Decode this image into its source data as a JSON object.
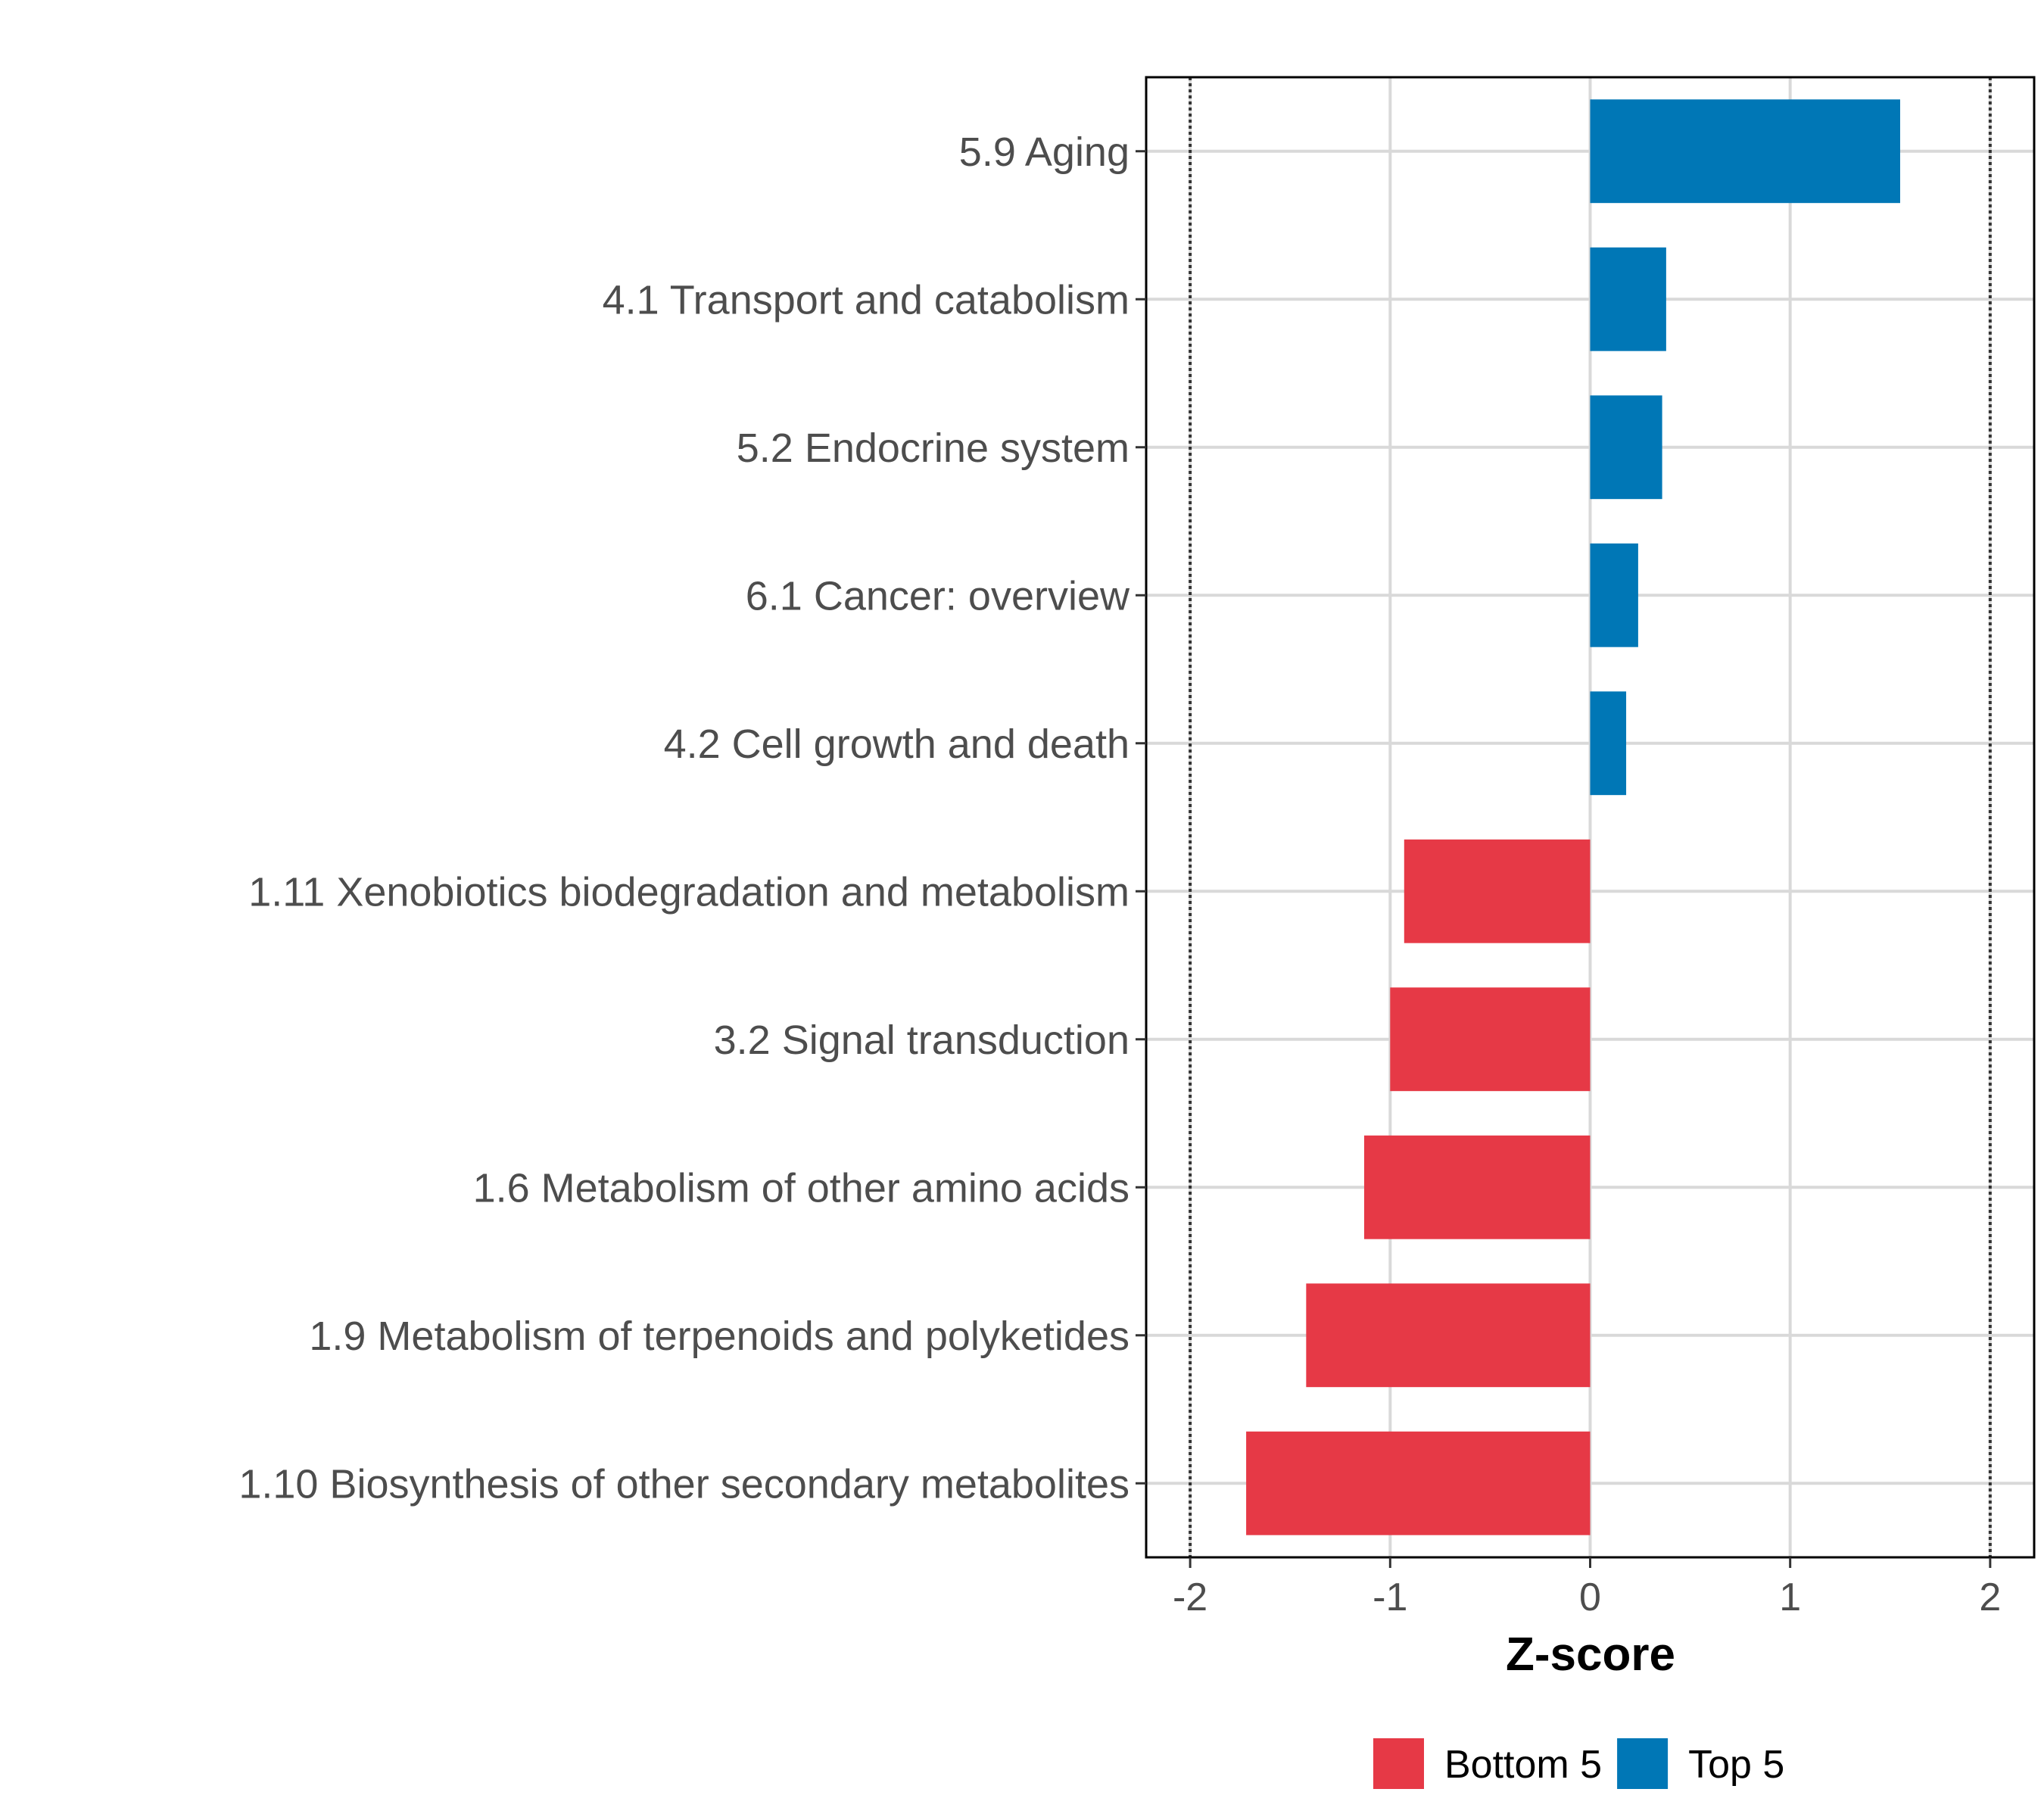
{
  "chart_data": {
    "type": "bar",
    "orientation": "horizontal",
    "categories": [
      "5.9 Aging",
      "4.1 Transport and catabolism",
      "5.2 Endocrine system",
      "6.1 Cancer: overview",
      "4.2 Cell growth and death",
      "1.11 Xenobiotics biodegradation and metabolism",
      "3.2 Signal transduction",
      "1.6 Metabolism of other amino acids",
      "1.9 Metabolism of terpenoids and polyketides",
      "1.10 Biosynthesis of other secondary metabolites"
    ],
    "values": [
      1.55,
      0.38,
      0.36,
      0.24,
      0.18,
      -0.93,
      -1.0,
      -1.13,
      -1.42,
      -1.72
    ],
    "groups": [
      "Top 5",
      "Top 5",
      "Top 5",
      "Top 5",
      "Top 5",
      "Bottom 5",
      "Bottom 5",
      "Bottom 5",
      "Bottom 5",
      "Bottom 5"
    ],
    "xlabel": "Z-score",
    "ylabel": "",
    "xlim": [
      -2.22,
      2.22
    ],
    "xticks": [
      -2,
      -1,
      0,
      1,
      2
    ],
    "xtick_labels": [
      "-2",
      "-1",
      "0",
      "1",
      "2"
    ],
    "reference_lines": [
      -2,
      2
    ],
    "grid": true,
    "legend": {
      "placement": "bottom",
      "entries": [
        {
          "label": "Bottom 5",
          "color": "#E63946"
        },
        {
          "label": "Top 5",
          "color": "#0077B6"
        }
      ]
    }
  }
}
